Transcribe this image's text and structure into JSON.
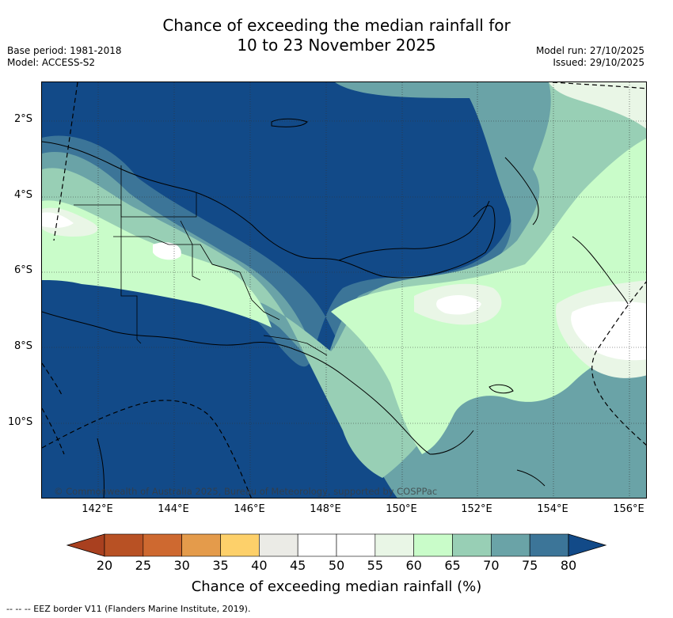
{
  "title_line1": "Chance of exceeding the median rainfall for",
  "title_line2": "10 to 23 November 2025",
  "base_period": "Base period: 1981-2018",
  "model": "Model: ACCESS-S2",
  "model_run": "Model run: 27/10/2025",
  "issued": "Issued: 29/10/2025",
  "copyright": "© Commonwealth of Australia 2025, Bureau of Meteorology, supported by COSPPac",
  "lat_labels": [
    "2°S",
    "4°S",
    "6°S",
    "8°S",
    "10°S"
  ],
  "lon_labels": [
    "142°E",
    "144°E",
    "146°E",
    "148°E",
    "150°E",
    "152°E",
    "154°E",
    "156°E"
  ],
  "colorbar": {
    "levels": [
      "20",
      "25",
      "30",
      "35",
      "40",
      "45",
      "50",
      "55",
      "60",
      "65",
      "70",
      "75",
      "80"
    ],
    "colors": [
      "#a9401f",
      "#b85124",
      "#ce6930",
      "#e49b4b",
      "#fdd06a",
      "#ebebe6",
      "#ffffff",
      "#ffffff",
      "#e9f6e6",
      "#c9fcc9",
      "#98cfb5",
      "#6aa3a7",
      "#3c7598",
      "#124a88"
    ],
    "label": "Chance of exceeding median rainfall (%)"
  },
  "footer": "--  --  -- EEZ border V11 (Flanders Marine Institute, 2019)."
}
